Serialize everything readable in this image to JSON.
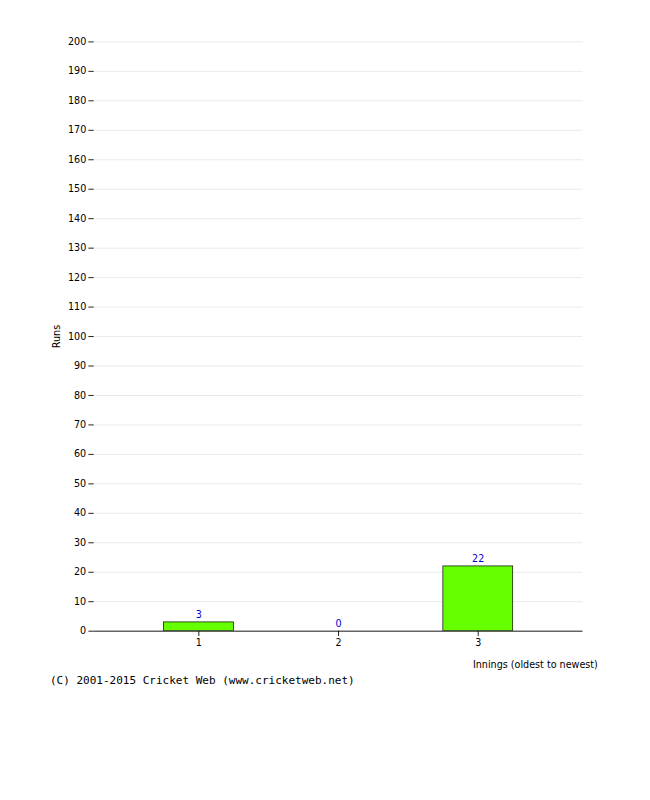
{
  "chart_data": {
    "type": "bar",
    "xlabel": "Innings (oldest to newest)",
    "ylabel": "Runs",
    "categories": [
      "1",
      "2",
      "3"
    ],
    "values": [
      3,
      0,
      22
    ],
    "color": "#66ff00",
    "ylim": [
      0,
      200
    ],
    "yticks": [
      0,
      10,
      20,
      30,
      40,
      50,
      60,
      70,
      80,
      90,
      100,
      110,
      120,
      130,
      140,
      150,
      160,
      170,
      180,
      190,
      200
    ],
    "grid": true,
    "data_labels": true,
    "caption": "(C) 2001-2015 Cricket Web (www.cricketweb.net)"
  }
}
